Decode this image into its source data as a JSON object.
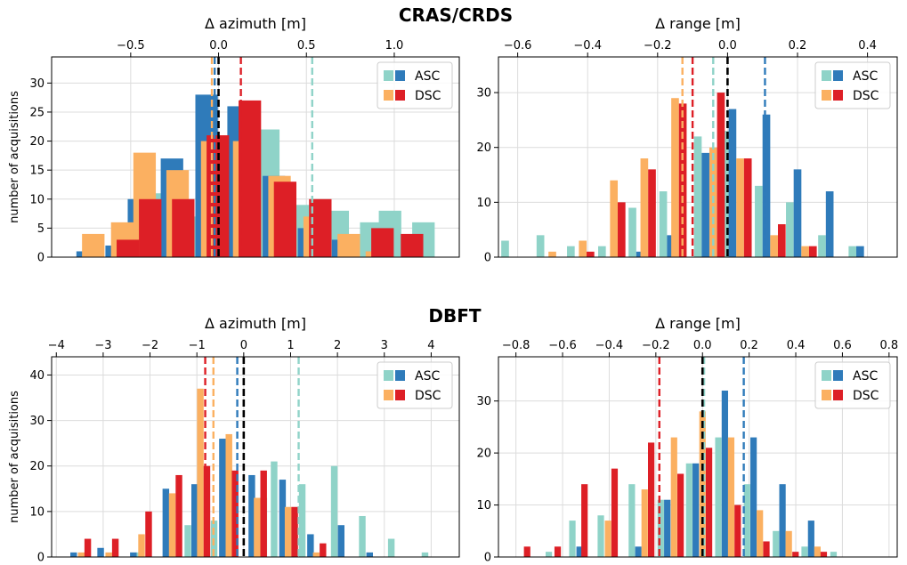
{
  "suptitles": [
    "CRAS/CRDS",
    "DBFT"
  ],
  "colors": {
    "asc_light": "#8fd3c8",
    "asc_dark": "#2f7bba",
    "dsc_light": "#fbb061",
    "dsc_dark": "#dd1f26",
    "zero_line": "#000000",
    "grid": "#dcdcdc"
  },
  "ylabel": "number of acquisitions",
  "legend": {
    "labels": [
      "ASC",
      "DSC"
    ],
    "placement": "top-right"
  },
  "chart_data": [
    {
      "type": "bar",
      "panel": "CRAS/CRDS azimuth",
      "xlabel": "Δ azimuth [m]",
      "xaxis_position": "top",
      "xlim": [
        -0.95,
        1.37
      ],
      "ylim": [
        0,
        34.5
      ],
      "xticks": [
        -0.5,
        0.0,
        0.5,
        1.0
      ],
      "xtick_labels": [
        "−0.5",
        "0.0",
        "0.5",
        "1.0"
      ],
      "yticks": [
        0,
        5,
        10,
        15,
        20,
        25,
        30
      ],
      "ylabel_shown": true,
      "bin_width": 0.128,
      "series": [
        {
          "name": "ASC",
          "kind": "light",
          "centers": [
            -0.485,
            -0.297,
            -0.1,
            0.097,
            0.283,
            0.483,
            0.678,
            0.869,
            0.976,
            1.166
          ],
          "values": [
            2,
            11,
            7,
            15,
            22,
            9,
            8,
            6,
            8,
            6
          ]
        },
        {
          "name": "ASC",
          "kind": "dark",
          "centers": [
            -0.745,
            -0.58,
            -0.453,
            -0.265,
            -0.068,
            0.114,
            0.315,
            0.515,
            0.709
          ],
          "values": [
            1,
            2,
            10,
            17,
            28,
            26,
            14,
            5,
            3
          ]
        },
        {
          "name": "DSC",
          "kind": "light",
          "centers": [
            -0.713,
            -0.548,
            -0.421,
            -0.233,
            -0.036,
            0.146,
            0.347,
            0.547,
            0.741,
            0.901
          ],
          "values": [
            4,
            6,
            18,
            15,
            20,
            20,
            14,
            7,
            4,
            1
          ]
        },
        {
          "name": "DSC",
          "kind": "dark",
          "centers": [
            -0.516,
            -0.389,
            -0.201,
            -0.004,
            0.178,
            0.379,
            0.579,
            0.933,
            1.101
          ],
          "values": [
            3,
            10,
            10,
            21,
            27,
            13,
            10,
            5,
            4
          ]
        }
      ],
      "vlines": [
        {
          "series": "ASC",
          "kind": "light",
          "x": 0.533
        },
        {
          "series": "ASC",
          "kind": "dark",
          "x": -0.022
        },
        {
          "series": "DSC",
          "kind": "light",
          "x": -0.038
        },
        {
          "series": "DSC",
          "kind": "dark",
          "x": 0.127
        },
        {
          "series": "zero",
          "kind": "zero",
          "x": 0.0
        }
      ]
    },
    {
      "type": "bar",
      "panel": "CRAS/CRDS range",
      "xlabel": "Δ range [m]",
      "xaxis_position": "top",
      "xlim": [
        -0.655,
        0.485
      ],
      "ylim": [
        0,
        36.5
      ],
      "xticks": [
        -0.6,
        -0.4,
        -0.2,
        0.0,
        0.2,
        0.4
      ],
      "xtick_labels": [
        "−0.6",
        "−0.4",
        "−0.2",
        "0.0",
        "0.2",
        "0.4"
      ],
      "yticks": [
        0,
        10,
        20,
        30
      ],
      "ylabel_shown": false,
      "bin_width": 0.022,
      "series": [
        {
          "name": "ASC",
          "kind": "light",
          "centers": [
            -0.636,
            -0.535,
            -0.448,
            -0.359,
            -0.272,
            -0.184,
            -0.085,
            -0.008,
            0.089,
            0.178,
            0.27,
            0.357
          ],
          "values": [
            3,
            4,
            2,
            2,
            9,
            12,
            22,
            23,
            13,
            10,
            4,
            2
          ]
        },
        {
          "name": "ASC",
          "kind": "dark",
          "centers": [
            -0.25,
            -0.162,
            -0.063,
            0.014,
            0.111,
            0.2,
            0.292,
            0.379
          ],
          "values": [
            1,
            4,
            19,
            27,
            26,
            16,
            12,
            2
          ]
        },
        {
          "name": "DSC",
          "kind": "light",
          "centers": [
            -0.501,
            -0.414,
            -0.325,
            -0.238,
            -0.15,
            -0.041,
            0.036,
            0.133,
            0.222
          ],
          "values": [
            1,
            3,
            14,
            18,
            29,
            20,
            18,
            4,
            2
          ]
        },
        {
          "name": "DSC",
          "kind": "dark",
          "centers": [
            -0.392,
            -0.303,
            -0.216,
            -0.128,
            -0.019,
            0.058,
            0.155,
            0.244
          ],
          "values": [
            1,
            10,
            16,
            28,
            30,
            18,
            6,
            2
          ]
        }
      ],
      "vlines": [
        {
          "series": "ASC",
          "kind": "light",
          "x": -0.041
        },
        {
          "series": "ASC",
          "kind": "dark",
          "x": 0.107
        },
        {
          "series": "DSC",
          "kind": "light",
          "x": -0.129
        },
        {
          "series": "DSC",
          "kind": "dark",
          "x": -0.1
        },
        {
          "series": "zero",
          "kind": "zero",
          "x": 0.0
        }
      ]
    },
    {
      "type": "bar",
      "panel": "DBFT azimuth",
      "xlabel": "Δ azimuth [m]",
      "xaxis_position": "top",
      "xlim": [
        -4.1,
        4.6
      ],
      "ylim": [
        0,
        44
      ],
      "xticks": [
        -4,
        -3,
        -2,
        -1,
        0,
        1,
        2,
        3,
        4
      ],
      "xtick_labels": [
        "−4",
        "−3",
        "−2",
        "−1",
        "0",
        "1",
        "2",
        "3",
        "4"
      ],
      "yticks": [
        0,
        10,
        20,
        30,
        40
      ],
      "ylabel_shown": true,
      "bin_width": 0.141,
      "series": [
        {
          "name": "ASC",
          "kind": "light",
          "centers": [
            -2.233,
            -1.193,
            -0.633,
            0.428,
            0.648,
            1.248,
            1.932,
            2.53,
            3.149,
            3.868
          ],
          "values": [
            1,
            7,
            8,
            13,
            21,
            16,
            20,
            9,
            4,
            1
          ]
        },
        {
          "name": "ASC",
          "kind": "dark",
          "centers": [
            -3.63,
            -3.054,
            -2.356,
            -1.662,
            -1.047,
            -0.455,
            0.172,
            0.828,
            1.425,
            2.079,
            2.687
          ],
          "values": [
            1,
            2,
            1,
            15,
            16,
            26,
            18,
            17,
            5,
            7,
            1
          ]
        },
        {
          "name": "DSC",
          "kind": "light",
          "centers": [
            -3.468,
            -2.881,
            -2.181,
            -1.526,
            -0.926,
            -0.316,
            0.286,
            0.946,
            1.548
          ],
          "values": [
            1,
            1,
            5,
            14,
            37,
            27,
            13,
            11,
            1
          ]
        },
        {
          "name": "DSC",
          "kind": "dark",
          "centers": [
            -3.329,
            -2.74,
            -2.03,
            -1.383,
            -0.786,
            -0.184,
            0.425,
            1.087,
            1.69
          ],
          "values": [
            4,
            4,
            10,
            18,
            20,
            19,
            19,
            11,
            3
          ]
        }
      ],
      "vlines": [
        {
          "series": "ASC",
          "kind": "light",
          "x": 1.172
        },
        {
          "series": "ASC",
          "kind": "dark",
          "x": -0.138
        },
        {
          "series": "DSC",
          "kind": "light",
          "x": -0.647
        },
        {
          "series": "DSC",
          "kind": "dark",
          "x": -0.822
        },
        {
          "series": "zero",
          "kind": "zero",
          "x": 0.0
        }
      ]
    },
    {
      "type": "bar",
      "panel": "DBFT range",
      "xlabel": "Δ range [m]",
      "xaxis_position": "top",
      "xlim": [
        -0.875,
        0.835
      ],
      "ylim": [
        0,
        38.5
      ],
      "xticks": [
        -0.8,
        -0.6,
        -0.4,
        -0.2,
        0.0,
        0.2,
        0.4,
        0.6,
        0.8
      ],
      "xtick_labels": [
        "−0.8",
        "−0.6",
        "−0.4",
        "−0.2",
        "0.0",
        "0.2",
        "0.4",
        "0.6",
        "0.8"
      ],
      "yticks": [
        0,
        10,
        20,
        30
      ],
      "ylabel_shown": false,
      "bin_width": 0.0275,
      "series": [
        {
          "name": "ASC",
          "kind": "light",
          "centers": [
            -0.659,
            -0.558,
            -0.436,
            -0.303,
            -0.179,
            -0.057,
            0.068,
            0.191,
            0.315,
            0.438,
            0.562
          ],
          "values": [
            1,
            7,
            8,
            14,
            11,
            18,
            23,
            14,
            5,
            2,
            1
          ]
        },
        {
          "name": "ASC",
          "kind": "dark",
          "centers": [
            -0.527,
            -0.275,
            -0.151,
            -0.029,
            0.096,
            0.219,
            0.343,
            0.466
          ],
          "values": [
            2,
            2,
            11,
            18,
            32,
            23,
            14,
            7
          ]
        },
        {
          "name": "DSC",
          "kind": "light",
          "centers": [
            -0.405,
            -0.248,
            -0.122,
            0.0,
            0.123,
            0.246,
            0.37,
            0.493
          ],
          "values": [
            7,
            13,
            23,
            28,
            23,
            9,
            5,
            2
          ]
        },
        {
          "name": "DSC",
          "kind": "dark",
          "centers": [
            -0.752,
            -0.621,
            -0.506,
            -0.377,
            -0.22,
            -0.094,
            0.028,
            0.151,
            0.274,
            0.399,
            0.52
          ],
          "values": [
            2,
            2,
            14,
            17,
            22,
            16,
            21,
            10,
            3,
            1,
            1
          ]
        }
      ],
      "vlines": [
        {
          "series": "ASC",
          "kind": "light",
          "x": 0.007
        },
        {
          "series": "ASC",
          "kind": "dark",
          "x": 0.177
        },
        {
          "series": "DSC",
          "kind": "light",
          "x": 0.0
        },
        {
          "series": "DSC",
          "kind": "dark",
          "x": -0.185
        },
        {
          "series": "zero",
          "kind": "zero",
          "x": 0.0
        }
      ]
    }
  ]
}
